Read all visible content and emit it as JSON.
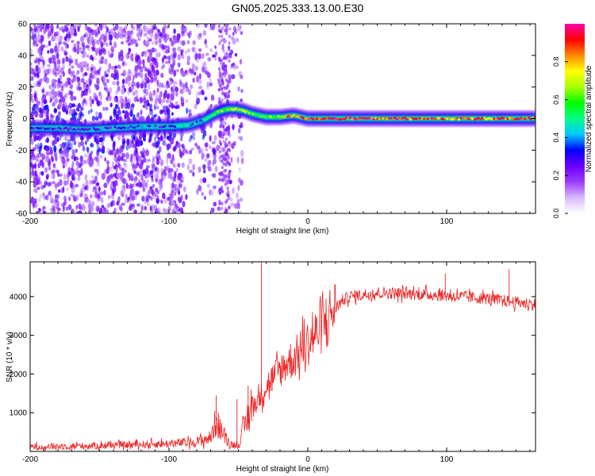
{
  "title": "GN05.2025.333.13.00.E30",
  "chart_data": [
    {
      "type": "heatmap",
      "name": "spectrogram",
      "xlabel": "Height of straight line (km)",
      "ylabel": "Frequency (Hz)",
      "xlim": [
        -200,
        164
      ],
      "ylim": [
        -60,
        60
      ],
      "xticks": [
        -200,
        -100,
        0,
        100
      ],
      "yticks": [
        -60,
        -40,
        -20,
        0,
        20,
        40,
        60
      ],
      "xtick_labels": [
        "-200",
        "-100",
        "0",
        "100"
      ],
      "ytick_labels": [
        "-60",
        "-40",
        "-20",
        "0",
        "20",
        "40",
        "60"
      ],
      "colorbar": {
        "label": "Normalized spectral amplitude",
        "range": [
          0,
          1
        ],
        "ticks": [
          0.0,
          0.2,
          0.4,
          0.6,
          0.8
        ],
        "tick_labels": [
          "0.0",
          "0.2",
          "0.4",
          "0.6",
          "0.8"
        ],
        "colormap": [
          "#ffffff",
          "#d8b8ff",
          "#9a3cff",
          "#6a00ff",
          "#0000ff",
          "#00c8ff",
          "#00ff88",
          "#00ff00",
          "#aaff00",
          "#ffff00",
          "#ff8800",
          "#ff0000",
          "#ff00aa"
        ]
      },
      "ridge": {
        "x": [
          -200,
          -180,
          -160,
          -140,
          -120,
          -100,
          -85,
          -75,
          -65,
          -58,
          -52,
          -46,
          -40,
          -30,
          -20,
          -10,
          -5,
          0,
          10,
          50,
          100,
          164
        ],
        "freq": [
          -6,
          -6,
          -7,
          -6,
          -5,
          -5,
          -4,
          -1,
          4,
          6,
          6,
          5,
          3,
          1,
          1,
          2,
          1,
          0,
          0,
          0,
          0,
          0
        ],
        "amp": [
          0.25,
          0.28,
          0.3,
          0.3,
          0.32,
          0.35,
          0.4,
          0.45,
          0.55,
          0.65,
          0.75,
          0.7,
          0.55,
          0.6,
          0.7,
          0.85,
          0.9,
          0.9,
          0.95,
          0.9,
          0.85,
          0.85
        ]
      },
      "noise_extent_km": -55
    },
    {
      "type": "line",
      "name": "snr",
      "xlabel": "Height of straight line (km)",
      "ylabel": "SNR (10 * v/v)",
      "xlim": [
        -200,
        164
      ],
      "ylim": [
        0,
        4900
      ],
      "xticks": [
        -200,
        -100,
        0,
        100
      ],
      "yticks": [
        1000,
        2000,
        3000,
        4000
      ],
      "xtick_labels": [
        "-200",
        "-100",
        "0",
        "100"
      ],
      "ytick_labels": [
        "1000",
        "2000",
        "3000",
        "4000"
      ],
      "color": "#ee2222",
      "trend": {
        "x": [
          -200,
          -150,
          -100,
          -80,
          -70,
          -66,
          -62,
          -56,
          -50,
          -44,
          -40,
          -36,
          -33,
          -30,
          -25,
          -20,
          -15,
          -10,
          -5,
          0,
          5,
          10,
          15,
          20,
          25,
          30,
          40,
          50,
          70,
          90,
          110,
          130,
          150,
          164
        ],
        "y": [
          120,
          150,
          200,
          250,
          350,
          800,
          500,
          200,
          150,
          800,
          1200,
          1300,
          1500,
          1700,
          1900,
          2100,
          2300,
          2400,
          2600,
          2800,
          3000,
          3200,
          3500,
          3700,
          3900,
          4000,
          4050,
          4100,
          4080,
          4050,
          4000,
          3950,
          3850,
          3800
        ]
      },
      "spikes": [
        {
          "x": -33.5,
          "y": 4900
        },
        {
          "x": -66,
          "y": 1450
        },
        {
          "x": -51,
          "y": 1350
        },
        {
          "x": -43,
          "y": 1700
        },
        {
          "x": 99,
          "y": 4600
        },
        {
          "x": 145,
          "y": 4700
        }
      ]
    }
  ]
}
